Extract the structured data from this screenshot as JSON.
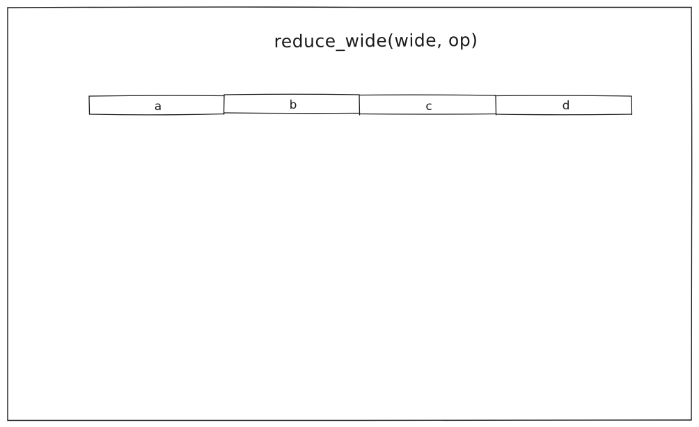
{
  "diagram": {
    "title": "reduce_wide(wide, op)",
    "cells": [
      {
        "label": "a"
      },
      {
        "label": "b"
      },
      {
        "label": "c"
      },
      {
        "label": "d"
      }
    ]
  },
  "colors": {
    "stroke": "#1a1a1a",
    "background": "#ffffff"
  }
}
